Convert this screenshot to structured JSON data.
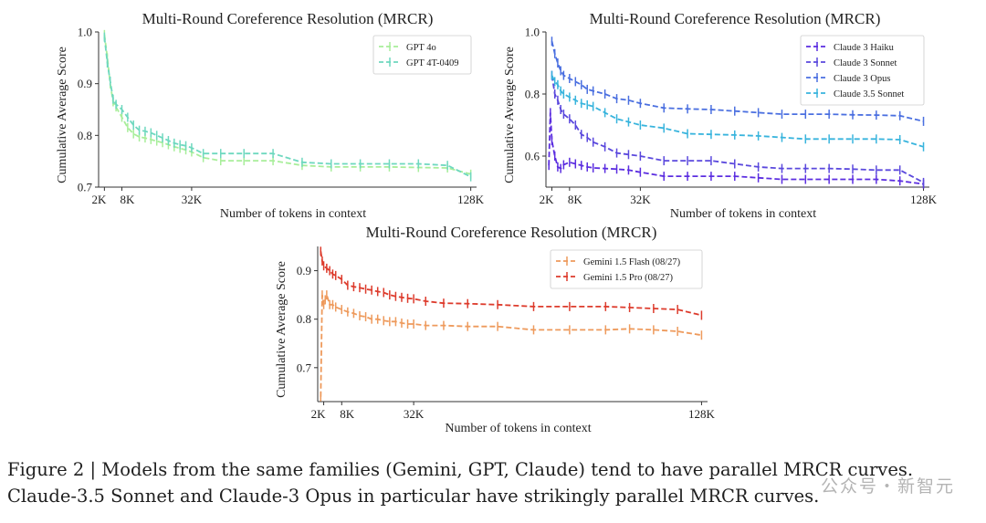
{
  "chart_data": [
    {
      "type": "line",
      "title": "Multi-Round Coreference Resolution (MRCR)",
      "xlabel": "Number of tokens in context",
      "ylabel": "Cumulative Average Score",
      "xlim": [
        0,
        130000
      ],
      "ylim": [
        0.7,
        1.0
      ],
      "xticks": [
        {
          "value": 2000,
          "label": "2K"
        },
        {
          "value": 8000,
          "label": "8K"
        },
        {
          "value": 32000,
          "label": "32K"
        },
        {
          "value": 128000,
          "label": "128K"
        }
      ],
      "yticks": [
        {
          "value": 0.7,
          "label": "0.7"
        },
        {
          "value": 0.8,
          "label": "0.8"
        },
        {
          "value": 0.9,
          "label": "0.9"
        },
        {
          "value": 1.0,
          "label": "1.0"
        }
      ],
      "legend_position": "top-right",
      "series": [
        {
          "name": "GPT 4o",
          "color": "#a8ee9a",
          "x": [
            2000,
            3000,
            4000,
            5000,
            6000,
            8000,
            10000,
            12000,
            14000,
            16000,
            18000,
            20000,
            22000,
            24000,
            26000,
            28000,
            30000,
            32000,
            36000,
            42000,
            50000,
            60000,
            70000,
            80000,
            90000,
            100000,
            110000,
            120000,
            128000
          ],
          "y": [
            0.995,
            0.95,
            0.9,
            0.865,
            0.855,
            0.835,
            0.815,
            0.803,
            0.797,
            0.795,
            0.792,
            0.789,
            0.786,
            0.782,
            0.778,
            0.775,
            0.772,
            0.768,
            0.757,
            0.751,
            0.751,
            0.751,
            0.742,
            0.739,
            0.739,
            0.739,
            0.738,
            0.737,
            0.725
          ]
        },
        {
          "name": "GPT 4T-0409",
          "color": "#6ed8bf",
          "x": [
            2000,
            3000,
            4000,
            5000,
            6000,
            8000,
            10000,
            12000,
            14000,
            16000,
            18000,
            20000,
            22000,
            24000,
            26000,
            28000,
            30000,
            32000,
            36000,
            42000,
            50000,
            60000,
            70000,
            80000,
            90000,
            100000,
            110000,
            120000,
            128000
          ],
          "y": [
            0.99,
            0.94,
            0.905,
            0.87,
            0.86,
            0.85,
            0.835,
            0.82,
            0.81,
            0.808,
            0.805,
            0.8,
            0.795,
            0.79,
            0.785,
            0.782,
            0.78,
            0.776,
            0.765,
            0.765,
            0.765,
            0.765,
            0.748,
            0.745,
            0.745,
            0.745,
            0.745,
            0.742,
            0.72
          ]
        }
      ]
    },
    {
      "type": "line",
      "title": "Multi-Round Coreference Resolution (MRCR)",
      "xlabel": "Number of tokens in context",
      "ylabel": "Cumulative Average Score",
      "xlim": [
        0,
        130000
      ],
      "ylim": [
        0.5,
        1.0
      ],
      "xticks": [
        {
          "value": 2000,
          "label": "2K"
        },
        {
          "value": 8000,
          "label": "8K"
        },
        {
          "value": 32000,
          "label": "32K"
        },
        {
          "value": 128000,
          "label": "128K"
        }
      ],
      "yticks": [
        {
          "value": 0.6,
          "label": "0.6"
        },
        {
          "value": 0.8,
          "label": "0.8"
        },
        {
          "value": 1.0,
          "label": "1.0"
        }
      ],
      "legend_position": "top-right",
      "series": [
        {
          "name": "Claude 3 Haiku",
          "color": "#5b2de0",
          "x": [
            1000,
            1500,
            2000,
            3000,
            4000,
            5000,
            6000,
            8000,
            10000,
            12000,
            14000,
            16000,
            20000,
            24000,
            28000,
            32000,
            40000,
            48000,
            56000,
            64000,
            72000,
            80000,
            88000,
            96000,
            104000,
            112000,
            120000,
            128000
          ],
          "y": [
            0.57,
            0.74,
            0.65,
            0.6,
            0.565,
            0.56,
            0.572,
            0.58,
            0.575,
            0.57,
            0.565,
            0.562,
            0.56,
            0.558,
            0.555,
            0.548,
            0.535,
            0.535,
            0.535,
            0.535,
            0.53,
            0.525,
            0.525,
            0.525,
            0.525,
            0.525,
            0.52,
            0.51
          ]
        },
        {
          "name": "Claude 3 Sonnet",
          "color": "#5a48dd",
          "x": [
            2000,
            3000,
            4000,
            5000,
            6000,
            8000,
            10000,
            12000,
            14000,
            16000,
            20000,
            24000,
            28000,
            32000,
            40000,
            48000,
            56000,
            64000,
            72000,
            80000,
            88000,
            96000,
            104000,
            112000,
            120000,
            128000
          ],
          "y": [
            0.86,
            0.8,
            0.78,
            0.75,
            0.735,
            0.72,
            0.7,
            0.67,
            0.66,
            0.645,
            0.63,
            0.61,
            0.605,
            0.6,
            0.585,
            0.585,
            0.585,
            0.575,
            0.565,
            0.56,
            0.56,
            0.56,
            0.558,
            0.555,
            0.555,
            0.515
          ]
        },
        {
          "name": "Claude 3 Opus",
          "color": "#4a6fe0",
          "x": [
            2000,
            3000,
            4000,
            5000,
            6000,
            8000,
            10000,
            12000,
            14000,
            16000,
            20000,
            24000,
            28000,
            32000,
            40000,
            48000,
            56000,
            64000,
            72000,
            80000,
            88000,
            96000,
            104000,
            112000,
            120000,
            128000
          ],
          "y": [
            0.97,
            0.93,
            0.9,
            0.875,
            0.86,
            0.85,
            0.84,
            0.83,
            0.815,
            0.81,
            0.8,
            0.785,
            0.78,
            0.77,
            0.755,
            0.752,
            0.75,
            0.745,
            0.74,
            0.735,
            0.735,
            0.735,
            0.733,
            0.732,
            0.73,
            0.712
          ]
        },
        {
          "name": "Claude 3.5 Sonnet",
          "color": "#38b4dd",
          "x": [
            2000,
            3000,
            4000,
            5000,
            6000,
            8000,
            10000,
            12000,
            14000,
            16000,
            20000,
            24000,
            28000,
            32000,
            40000,
            48000,
            56000,
            64000,
            72000,
            80000,
            88000,
            96000,
            104000,
            112000,
            120000,
            128000
          ],
          "y": [
            0.86,
            0.84,
            0.83,
            0.81,
            0.8,
            0.79,
            0.78,
            0.77,
            0.765,
            0.76,
            0.74,
            0.72,
            0.71,
            0.7,
            0.69,
            0.672,
            0.67,
            0.668,
            0.665,
            0.66,
            0.655,
            0.655,
            0.655,
            0.655,
            0.653,
            0.63
          ]
        }
      ]
    },
    {
      "type": "line",
      "title": "Multi-Round Coreference Resolution (MRCR)",
      "xlabel": "Number of tokens in context",
      "ylabel": "Cumulative Average Score",
      "xlim": [
        0,
        130000
      ],
      "ylim": [
        0.63,
        0.95
      ],
      "xticks": [
        {
          "value": 2000,
          "label": "2K"
        },
        {
          "value": 8000,
          "label": "8K"
        },
        {
          "value": 32000,
          "label": "32K"
        },
        {
          "value": 128000,
          "label": "128K"
        }
      ],
      "yticks": [
        {
          "value": 0.7,
          "label": "0.7"
        },
        {
          "value": 0.8,
          "label": "0.8"
        },
        {
          "value": 0.9,
          "label": "0.9"
        }
      ],
      "legend_position": "top-right",
      "series": [
        {
          "name": "Gemini 1.5 Flash (08/27)",
          "color": "#ee9a5c",
          "x": [
            1000,
            1500,
            2000,
            2500,
            3000,
            4000,
            5000,
            6000,
            8000,
            10000,
            12000,
            14000,
            16000,
            18000,
            20000,
            22000,
            24000,
            26000,
            28000,
            30000,
            32000,
            36000,
            42000,
            50000,
            60000,
            72000,
            84000,
            96000,
            104000,
            112000,
            120000,
            128000
          ],
          "y": [
            0.64,
            0.85,
            0.83,
            0.84,
            0.85,
            0.83,
            0.83,
            0.825,
            0.82,
            0.815,
            0.812,
            0.807,
            0.805,
            0.8,
            0.8,
            0.797,
            0.795,
            0.795,
            0.792,
            0.79,
            0.79,
            0.787,
            0.787,
            0.785,
            0.785,
            0.778,
            0.778,
            0.778,
            0.78,
            0.778,
            0.775,
            0.767
          ]
        },
        {
          "name": "Gemini 1.5 Pro (08/27)",
          "color": "#dd3b2c",
          "x": [
            1000,
            1500,
            2000,
            3000,
            4000,
            5000,
            6000,
            8000,
            10000,
            12000,
            14000,
            16000,
            18000,
            20000,
            22000,
            24000,
            26000,
            28000,
            30000,
            32000,
            36000,
            42000,
            50000,
            60000,
            72000,
            84000,
            96000,
            104000,
            112000,
            120000,
            128000
          ],
          "y": [
            0.94,
            0.92,
            0.91,
            0.905,
            0.9,
            0.893,
            0.89,
            0.882,
            0.87,
            0.867,
            0.865,
            0.862,
            0.86,
            0.857,
            0.855,
            0.85,
            0.847,
            0.845,
            0.843,
            0.842,
            0.837,
            0.833,
            0.832,
            0.83,
            0.826,
            0.826,
            0.826,
            0.824,
            0.822,
            0.82,
            0.808
          ]
        }
      ]
    }
  ],
  "caption": {
    "line1": "Figure 2 | Models from the same families (Gemini, GPT, Claude) tend to have parallel MRCR curves.",
    "line2": "Claude-3.5 Sonnet and Claude-3 Opus in particular have strikingly parallel MRCR curves."
  },
  "watermark": "公众号・新智元"
}
